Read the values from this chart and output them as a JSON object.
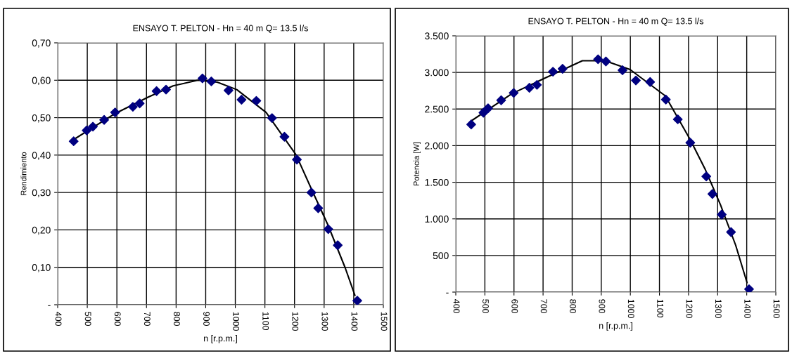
{
  "chart_data": [
    {
      "type": "scatter",
      "title": "ENSAYO T. PELTON - Hn = 40 m Q= 13.5 l/s",
      "xlabel": "n [r.p.m.]",
      "ylabel": "Rendimiento",
      "xlim": [
        400,
        1500
      ],
      "xticks": [
        400,
        500,
        600,
        700,
        800,
        900,
        1000,
        1100,
        1200,
        1300,
        1400,
        1500
      ],
      "ylim": [
        0,
        0.7
      ],
      "yticks": [
        {
          "value": 0,
          "label": "-"
        },
        {
          "value": 0.1,
          "label": "0,10"
        },
        {
          "value": 0.2,
          "label": "0,20"
        },
        {
          "value": 0.3,
          "label": "0,30"
        },
        {
          "value": 0.4,
          "label": "0,40"
        },
        {
          "value": 0.5,
          "label": "0,50"
        },
        {
          "value": 0.6,
          "label": "0,60"
        },
        {
          "value": 0.7,
          "label": "0,70"
        }
      ],
      "grid": true,
      "marker": "diamond",
      "series": [
        {
          "color": "#000080",
          "x": [
            454,
            498,
            519,
            557,
            594,
            654,
            677,
            734,
            766,
            889,
            919,
            977,
            1021,
            1071,
            1124,
            1166,
            1208,
            1257,
            1280,
            1314,
            1346,
            1412
          ],
          "values": [
            0.437,
            0.466,
            0.476,
            0.494,
            0.514,
            0.529,
            0.538,
            0.571,
            0.575,
            0.605,
            0.597,
            0.573,
            0.548,
            0.545,
            0.499,
            0.449,
            0.388,
            0.3,
            0.258,
            0.202,
            0.159,
            0.011
          ]
        },
        {
          "type": "line",
          "color": "#000000",
          "marker": "none",
          "x": [
            457,
            594,
            706,
            790,
            873,
            939,
            1005,
            1104,
            1205,
            1255,
            1313,
            1371,
            1404
          ],
          "values": [
            0.443,
            0.511,
            0.555,
            0.585,
            0.6,
            0.595,
            0.575,
            0.514,
            0.401,
            0.313,
            0.213,
            0.099,
            0.025
          ]
        }
      ]
    },
    {
      "type": "scatter",
      "title": "ENSAYO T. PELTON - Hn = 40 m Q= 13.5 l/s",
      "xlabel": "n [r.p.m.]",
      "ylabel": "Potencia [W]",
      "xlim": [
        400,
        1500
      ],
      "xticks": [
        400,
        500,
        600,
        700,
        800,
        900,
        1000,
        1100,
        1200,
        1300,
        1400,
        1500
      ],
      "ylim": [
        0,
        3500
      ],
      "yticks": [
        {
          "value": 0,
          "label": "-"
        },
        {
          "value": 500,
          "label": "500"
        },
        {
          "value": 1000,
          "label": "1.000"
        },
        {
          "value": 1500,
          "label": "1.500"
        },
        {
          "value": 2000,
          "label": "2.000"
        },
        {
          "value": 2500,
          "label": "2.500"
        },
        {
          "value": 3000,
          "label": "3.000"
        },
        {
          "value": 3500,
          "label": "3.500"
        }
      ],
      "grid": true,
      "marker": "diamond",
      "series": [
        {
          "color": "#000080",
          "x": [
            453,
            495,
            511,
            556,
            599,
            653,
            679,
            734,
            767,
            889,
            916,
            973,
            1019,
            1068,
            1122,
            1163,
            1206,
            1261,
            1282,
            1314,
            1346,
            1408
          ],
          "values": [
            2290,
            2450,
            2510,
            2620,
            2720,
            2790,
            2830,
            3010,
            3050,
            3180,
            3150,
            3030,
            2890,
            2870,
            2630,
            2360,
            2040,
            1580,
            1340,
            1060,
            820,
            40
          ]
        },
        {
          "type": "line",
          "color": "#000000",
          "marker": "none",
          "x": [
            454,
            593,
            705,
            835,
            913,
            999,
            1120,
            1206,
            1258,
            1310,
            1362,
            1401
          ],
          "values": [
            2340,
            2710,
            2920,
            3160,
            3160,
            3040,
            2680,
            2080,
            1670,
            1190,
            640,
            130
          ]
        }
      ]
    }
  ]
}
